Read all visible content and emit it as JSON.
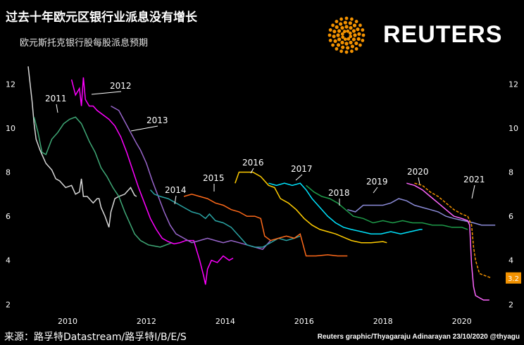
{
  "title": "过去十年欧元区银行业派息没有增长",
  "subtitle": "欧元斯托克银行股每股派息预期",
  "brand": {
    "name": "REUTERS",
    "logo_icon": "reuters-dot-sunburst-icon",
    "logo_color": "#f39200"
  },
  "source": "来源：路孚特Datastream/路孚特I/B/E/S",
  "credit": "Reuters graphic/Thyagaraju Adinarayan 23/10/2020 @thyagu",
  "chart_data": {
    "type": "line",
    "title": "过去十年欧元区银行业派息没有增长",
    "subtitle": "欧元斯托克银行股每股派息预期",
    "xlabel": "",
    "ylabel": "",
    "xlim": [
      2009.0,
      2020.9
    ],
    "ylim": [
      1.5,
      13
    ],
    "y_ticks": [
      2,
      4,
      6,
      8,
      10,
      12
    ],
    "x_ticks": [
      2010,
      2012,
      2014,
      2016,
      2018,
      2020
    ],
    "grid": false,
    "legend": "none",
    "end_value_label": "3.2",
    "series": [
      {
        "name": "",
        "color": "#d9d9d9",
        "points": [
          [
            2009.0,
            12.8
          ],
          [
            2009.1,
            11.2
          ],
          [
            2009.15,
            10.2
          ],
          [
            2009.2,
            9.5
          ],
          [
            2009.3,
            9.0
          ],
          [
            2009.45,
            8.4
          ],
          [
            2009.6,
            8.1
          ],
          [
            2009.7,
            7.7
          ],
          [
            2009.8,
            7.6
          ],
          [
            2009.95,
            7.3
          ],
          [
            2010.1,
            7.4
          ],
          [
            2010.2,
            7.0
          ],
          [
            2010.3,
            7.1
          ],
          [
            2010.35,
            7.7
          ],
          [
            2010.4,
            6.9
          ],
          [
            2010.5,
            6.9
          ],
          [
            2010.65,
            6.6
          ],
          [
            2010.75,
            6.8
          ],
          [
            2010.8,
            6.8
          ],
          [
            2010.85,
            6.4
          ],
          [
            2010.95,
            6.0
          ],
          [
            2011.05,
            5.5
          ],
          [
            2011.1,
            6.2
          ],
          [
            2011.2,
            6.8
          ],
          [
            2011.3,
            6.9
          ],
          [
            2011.45,
            7.0
          ],
          [
            2011.6,
            7.3
          ],
          [
            2011.7,
            6.95
          ],
          [
            2011.75,
            6.9
          ]
        ]
      },
      {
        "name": "2011",
        "color": "#3fa876",
        "points": [
          [
            2009.15,
            10.5
          ],
          [
            2009.25,
            9.8
          ],
          [
            2009.35,
            8.9
          ],
          [
            2009.45,
            8.8
          ],
          [
            2009.6,
            9.5
          ],
          [
            2009.75,
            9.8
          ],
          [
            2009.9,
            10.2
          ],
          [
            2010.05,
            10.4
          ],
          [
            2010.2,
            10.5
          ],
          [
            2010.35,
            10.2
          ],
          [
            2010.45,
            9.8
          ],
          [
            2010.55,
            9.4
          ],
          [
            2010.7,
            8.9
          ],
          [
            2010.85,
            8.2
          ],
          [
            2011.0,
            7.8
          ],
          [
            2011.15,
            7.3
          ],
          [
            2011.3,
            6.9
          ],
          [
            2011.45,
            6.2
          ],
          [
            2011.55,
            5.8
          ],
          [
            2011.7,
            5.2
          ],
          [
            2011.85,
            4.9
          ],
          [
            2012.05,
            4.7
          ],
          [
            2012.2,
            4.65
          ],
          [
            2012.35,
            4.6
          ],
          [
            2012.5,
            4.7
          ],
          [
            2012.65,
            4.8
          ]
        ]
      },
      {
        "name": "2012",
        "color": "#ff00ff",
        "points": [
          [
            2010.1,
            12.2
          ],
          [
            2010.2,
            11.5
          ],
          [
            2010.3,
            11.8
          ],
          [
            2010.35,
            11.0
          ],
          [
            2010.4,
            12.3
          ],
          [
            2010.45,
            11.3
          ],
          [
            2010.55,
            11.0
          ],
          [
            2010.65,
            11.0
          ],
          [
            2010.75,
            10.8
          ],
          [
            2010.9,
            10.6
          ],
          [
            2011.05,
            10.4
          ],
          [
            2011.2,
            10.1
          ],
          [
            2011.35,
            9.6
          ],
          [
            2011.5,
            8.9
          ],
          [
            2011.65,
            8.1
          ],
          [
            2011.8,
            7.3
          ],
          [
            2011.95,
            6.6
          ],
          [
            2012.1,
            5.9
          ],
          [
            2012.25,
            5.4
          ],
          [
            2012.4,
            5.0
          ],
          [
            2012.55,
            4.85
          ],
          [
            2012.7,
            4.75
          ],
          [
            2012.85,
            4.8
          ],
          [
            2013.0,
            4.9
          ],
          [
            2013.2,
            4.9
          ],
          [
            2013.35,
            4.0
          ],
          [
            2013.45,
            3.3
          ],
          [
            2013.5,
            2.9
          ],
          [
            2013.55,
            3.6
          ],
          [
            2013.65,
            4.0
          ],
          [
            2013.8,
            3.9
          ],
          [
            2013.95,
            4.2
          ],
          [
            2014.1,
            4.0
          ],
          [
            2014.2,
            4.1
          ]
        ]
      },
      {
        "name": "2013",
        "color": "#9966cc",
        "points": [
          [
            2011.1,
            11.0
          ],
          [
            2011.3,
            10.8
          ],
          [
            2011.45,
            10.3
          ],
          [
            2011.6,
            9.8
          ],
          [
            2011.75,
            9.3
          ],
          [
            2011.85,
            9.0
          ],
          [
            2012.0,
            8.4
          ],
          [
            2012.15,
            7.6
          ],
          [
            2012.3,
            6.9
          ],
          [
            2012.45,
            6.2
          ],
          [
            2012.6,
            5.6
          ],
          [
            2012.75,
            5.2
          ],
          [
            2012.95,
            5.0
          ],
          [
            2013.15,
            4.8
          ],
          [
            2013.35,
            4.9
          ],
          [
            2013.55,
            5.0
          ],
          [
            2013.75,
            4.9
          ],
          [
            2013.95,
            4.8
          ],
          [
            2014.15,
            4.9
          ],
          [
            2014.35,
            4.8
          ],
          [
            2014.55,
            4.7
          ],
          [
            2014.75,
            4.6
          ],
          [
            2014.95,
            4.5
          ],
          [
            2015.15,
            4.9
          ]
        ]
      },
      {
        "name": "2014",
        "color": "#2aa3a3",
        "points": [
          [
            2012.1,
            7.2
          ],
          [
            2012.2,
            7.0
          ],
          [
            2012.35,
            6.9
          ],
          [
            2012.55,
            6.8
          ],
          [
            2012.75,
            6.6
          ],
          [
            2012.95,
            6.4
          ],
          [
            2013.15,
            6.2
          ],
          [
            2013.35,
            6.1
          ],
          [
            2013.5,
            5.9
          ],
          [
            2013.6,
            6.1
          ],
          [
            2013.75,
            5.8
          ],
          [
            2013.95,
            5.7
          ],
          [
            2014.15,
            5.5
          ],
          [
            2014.35,
            5.1
          ],
          [
            2014.55,
            4.7
          ],
          [
            2014.75,
            4.6
          ],
          [
            2014.95,
            4.6
          ],
          [
            2015.15,
            4.8
          ],
          [
            2015.35,
            5.0
          ],
          [
            2015.55,
            4.9
          ],
          [
            2015.75,
            5.0
          ],
          [
            2015.9,
            5.1
          ]
        ]
      },
      {
        "name": "2015",
        "color": "#ff6a1a",
        "points": [
          [
            2012.95,
            6.9
          ],
          [
            2013.15,
            7.0
          ],
          [
            2013.35,
            6.9
          ],
          [
            2013.55,
            6.8
          ],
          [
            2013.75,
            6.6
          ],
          [
            2013.95,
            6.5
          ],
          [
            2014.15,
            6.3
          ],
          [
            2014.35,
            6.2
          ],
          [
            2014.55,
            6.0
          ],
          [
            2014.75,
            6.0
          ],
          [
            2014.9,
            5.9
          ],
          [
            2015.0,
            5.1
          ],
          [
            2015.15,
            4.9
          ],
          [
            2015.35,
            5.0
          ],
          [
            2015.55,
            5.1
          ],
          [
            2015.75,
            5.0
          ],
          [
            2015.9,
            5.2
          ],
          [
            2016.05,
            4.2
          ],
          [
            2016.3,
            4.2
          ],
          [
            2016.6,
            4.25
          ],
          [
            2016.85,
            4.2
          ],
          [
            2017.1,
            4.2
          ]
        ]
      },
      {
        "name": "2016",
        "color": "#ffcc00",
        "points": [
          [
            2014.25,
            7.5
          ],
          [
            2014.35,
            8.0
          ],
          [
            2014.5,
            8.0
          ],
          [
            2014.7,
            8.0
          ],
          [
            2014.9,
            7.8
          ],
          [
            2015.1,
            7.4
          ],
          [
            2015.25,
            7.3
          ],
          [
            2015.4,
            6.8
          ],
          [
            2015.6,
            6.6
          ],
          [
            2015.8,
            6.3
          ],
          [
            2016.0,
            5.9
          ],
          [
            2016.2,
            5.6
          ],
          [
            2016.4,
            5.4
          ],
          [
            2016.6,
            5.3
          ],
          [
            2016.8,
            5.2
          ],
          [
            2017.0,
            5.05
          ],
          [
            2017.2,
            4.9
          ],
          [
            2017.45,
            4.8
          ],
          [
            2017.7,
            4.8
          ],
          [
            2018.0,
            4.85
          ],
          [
            2018.1,
            4.8
          ]
        ]
      },
      {
        "name": "2017",
        "color": "#00e5ff",
        "points": [
          [
            2015.1,
            7.5
          ],
          [
            2015.3,
            7.4
          ],
          [
            2015.5,
            7.5
          ],
          [
            2015.7,
            7.4
          ],
          [
            2015.9,
            7.5
          ],
          [
            2016.05,
            7.2
          ],
          [
            2016.2,
            6.8
          ],
          [
            2016.4,
            6.4
          ],
          [
            2016.6,
            6.0
          ],
          [
            2016.8,
            5.7
          ],
          [
            2017.0,
            5.5
          ],
          [
            2017.2,
            5.4
          ],
          [
            2017.45,
            5.3
          ],
          [
            2017.7,
            5.2
          ],
          [
            2017.95,
            5.2
          ],
          [
            2018.2,
            5.3
          ],
          [
            2018.45,
            5.2
          ],
          [
            2018.7,
            5.3
          ],
          [
            2018.95,
            5.4
          ],
          [
            2019.0,
            5.4
          ]
        ]
      },
      {
        "name": "2018",
        "color": "#1e9c4a",
        "points": [
          [
            2016.05,
            7.4
          ],
          [
            2016.25,
            7.1
          ],
          [
            2016.45,
            6.9
          ],
          [
            2016.65,
            6.8
          ],
          [
            2016.85,
            6.6
          ],
          [
            2017.05,
            6.3
          ],
          [
            2017.25,
            6.0
          ],
          [
            2017.5,
            5.9
          ],
          [
            2017.75,
            5.7
          ],
          [
            2018.0,
            5.8
          ],
          [
            2018.25,
            5.7
          ],
          [
            2018.5,
            5.8
          ],
          [
            2018.75,
            5.7
          ],
          [
            2019.0,
            5.7
          ],
          [
            2019.25,
            5.6
          ],
          [
            2019.5,
            5.6
          ],
          [
            2019.75,
            5.5
          ],
          [
            2020.0,
            5.5
          ],
          [
            2020.15,
            5.4
          ]
        ]
      },
      {
        "name": "2019",
        "color": "#8c8cd9",
        "points": [
          [
            2017.1,
            6.3
          ],
          [
            2017.3,
            6.2
          ],
          [
            2017.5,
            6.5
          ],
          [
            2017.75,
            6.5
          ],
          [
            2018.0,
            6.5
          ],
          [
            2018.2,
            6.6
          ],
          [
            2018.4,
            6.8
          ],
          [
            2018.6,
            6.7
          ],
          [
            2018.8,
            6.5
          ],
          [
            2019.0,
            6.4
          ],
          [
            2019.2,
            6.3
          ],
          [
            2019.4,
            6.2
          ],
          [
            2019.6,
            6.0
          ],
          [
            2019.8,
            5.9
          ],
          [
            2020.05,
            5.8
          ],
          [
            2020.3,
            5.7
          ],
          [
            2020.5,
            5.6
          ],
          [
            2020.7,
            5.6
          ],
          [
            2020.85,
            5.6
          ]
        ]
      },
      {
        "name": "2020",
        "color": "#ff66ff",
        "points": [
          [
            2018.6,
            7.5
          ],
          [
            2018.8,
            7.4
          ],
          [
            2019.0,
            7.2
          ],
          [
            2019.2,
            6.9
          ],
          [
            2019.4,
            6.6
          ],
          [
            2019.6,
            6.3
          ],
          [
            2019.8,
            6.0
          ],
          [
            2020.0,
            5.9
          ],
          [
            2020.15,
            5.8
          ],
          [
            2020.2,
            5.6
          ],
          [
            2020.25,
            3.8
          ],
          [
            2020.3,
            2.8
          ],
          [
            2020.35,
            2.4
          ],
          [
            2020.45,
            2.3
          ],
          [
            2020.55,
            2.2
          ],
          [
            2020.7,
            2.2
          ]
        ]
      },
      {
        "name": "2021",
        "color": "#f39200",
        "points": [
          [
            2018.8,
            7.5
          ],
          [
            2019.0,
            7.4
          ],
          [
            2019.2,
            7.1
          ],
          [
            2019.4,
            6.9
          ],
          [
            2019.6,
            6.6
          ],
          [
            2019.8,
            6.3
          ],
          [
            2020.0,
            6.1
          ],
          [
            2020.15,
            6.0
          ],
          [
            2020.25,
            5.6
          ],
          [
            2020.3,
            4.6
          ],
          [
            2020.35,
            4.0
          ],
          [
            2020.45,
            3.4
          ],
          [
            2020.6,
            3.3
          ],
          [
            2020.75,
            3.2
          ]
        ]
      }
    ]
  }
}
